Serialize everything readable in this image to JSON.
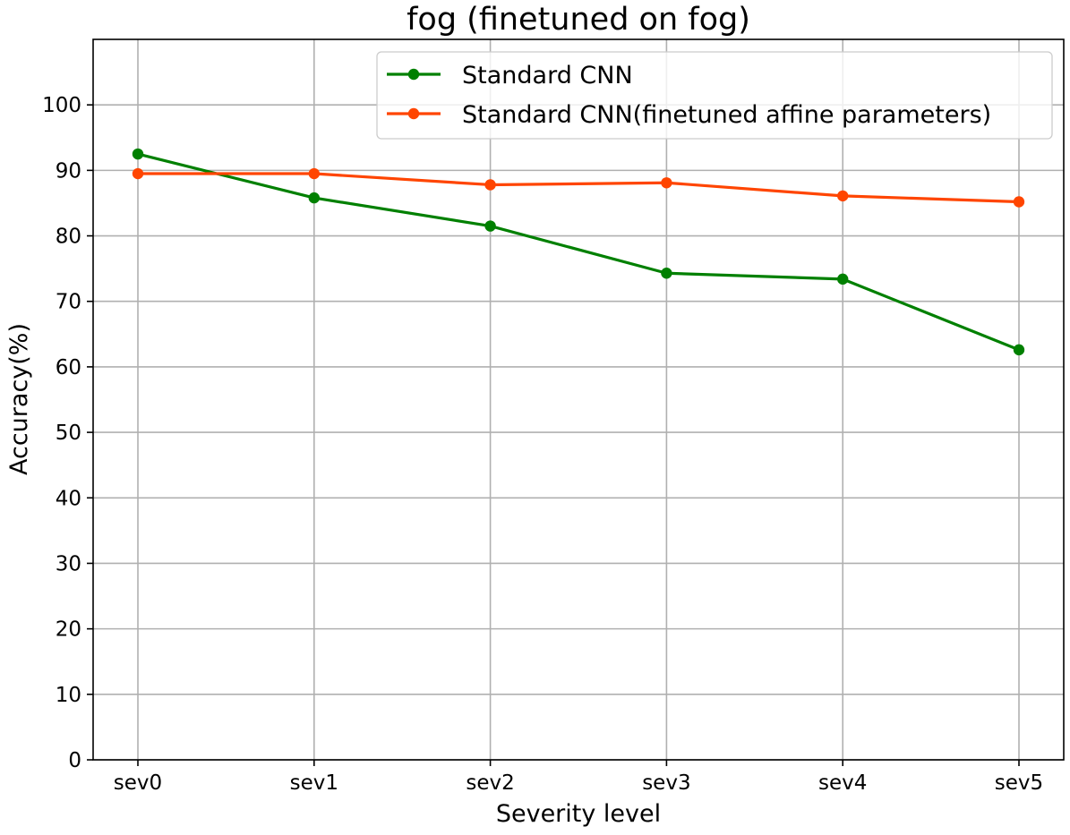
{
  "chart_data": {
    "type": "line",
    "title": "fog (finetuned on fog)",
    "xlabel": "Severity level",
    "ylabel": "Accuracy(%)",
    "categories": [
      "sev0",
      "sev1",
      "sev2",
      "sev3",
      "sev4",
      "sev5"
    ],
    "ylim": [
      0,
      110
    ],
    "yticks": [
      0,
      10,
      20,
      30,
      40,
      50,
      60,
      70,
      80,
      90,
      100
    ],
    "grid": true,
    "legend_position": "top-right",
    "series": [
      {
        "name": "Standard CNN",
        "color": "#008000",
        "marker": "circle",
        "values": [
          92.5,
          85.8,
          81.5,
          74.3,
          73.4,
          62.6
        ]
      },
      {
        "name": "Standard CNN(finetuned affine parameters)",
        "color": "#ff4500",
        "marker": "circle",
        "values": [
          89.5,
          89.5,
          87.8,
          88.1,
          86.1,
          85.2
        ]
      }
    ]
  }
}
